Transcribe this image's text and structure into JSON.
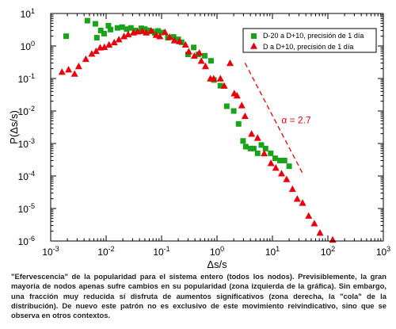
{
  "chart_data": {
    "type": "scatter",
    "xlabel": "Δs/s",
    "ylabel": "P(Δs/s)",
    "xscale": "log",
    "yscale": "log",
    "xlim": [
      0.001,
      1000
    ],
    "ylim": [
      1e-06,
      10
    ],
    "x_ticks": [
      "10",
      "10",
      "10",
      "10",
      "10",
      "10",
      "10"
    ],
    "x_tick_exponents": [
      "-3",
      "-2",
      "-1",
      "0",
      "1",
      "2",
      "3"
    ],
    "y_ticks": [
      "10",
      "10",
      "10",
      "10",
      "10",
      "10",
      "10",
      "10"
    ],
    "y_tick_exponents": [
      "-6",
      "-5",
      "-4",
      "-3",
      "-2",
      "-1",
      "0",
      "1"
    ],
    "legend_position": "top-right",
    "series": [
      {
        "name": "D-20 a D+10, precisión de 1 día",
        "color": "#1aa31a",
        "marker": "square",
        "points": [
          [
            0.0019,
            2.0
          ],
          [
            0.0046,
            6.0
          ],
          [
            0.0064,
            4.8
          ],
          [
            0.0068,
            1.8
          ],
          [
            0.008,
            3.0
          ],
          [
            0.0092,
            2.4
          ],
          [
            0.011,
            4.2
          ],
          [
            0.012,
            3.2
          ],
          [
            0.016,
            3.6
          ],
          [
            0.0195,
            3.8
          ],
          [
            0.0235,
            3.3
          ],
          [
            0.028,
            3.6
          ],
          [
            0.033,
            3.0
          ],
          [
            0.038,
            2.8
          ],
          [
            0.043,
            3.5
          ],
          [
            0.05,
            3.3
          ],
          [
            0.058,
            3.0
          ],
          [
            0.067,
            2.8
          ],
          [
            0.076,
            2.5
          ],
          [
            0.086,
            2.9
          ],
          [
            0.1,
            2.6
          ],
          [
            0.13,
            1.8
          ],
          [
            0.165,
            1.9
          ],
          [
            0.2,
            1.6
          ],
          [
            0.23,
            1.3
          ],
          [
            0.3,
            0.55
          ],
          [
            0.38,
            0.9
          ],
          [
            0.46,
            0.55
          ],
          [
            0.6,
            0.5
          ],
          [
            0.78,
            0.35
          ],
          [
            0.88,
            0.09
          ],
          [
            1.15,
            0.06
          ],
          [
            1.5,
            0.014
          ],
          [
            2.0,
            0.01
          ],
          [
            2.45,
            0.004
          ],
          [
            2.95,
            0.0012
          ],
          [
            3.3,
            0.0008
          ],
          [
            4.0,
            0.0007
          ],
          [
            4.6,
            0.0007
          ],
          [
            5.4,
            0.0005
          ],
          [
            6.3,
            0.0009
          ],
          [
            7.5,
            0.0007
          ],
          [
            9.3,
            0.0005
          ],
          [
            11.2,
            0.00035
          ],
          [
            13.7,
            0.0003
          ],
          [
            16.5,
            0.0003
          ],
          [
            20.0,
            0.0002
          ]
        ]
      },
      {
        "name": "D a D+10, precisión de 1 día",
        "color": "#e8000b",
        "marker": "triangle",
        "points": [
          [
            0.0016,
            0.16
          ],
          [
            0.0021,
            0.19
          ],
          [
            0.0027,
            0.14
          ],
          [
            0.0032,
            0.24
          ],
          [
            0.0043,
            0.4
          ],
          [
            0.0055,
            0.58
          ],
          [
            0.0066,
            0.7
          ],
          [
            0.0078,
            0.9
          ],
          [
            0.0093,
            0.93
          ],
          [
            0.0113,
            1.1
          ],
          [
            0.014,
            1.3
          ],
          [
            0.017,
            1.6
          ],
          [
            0.021,
            2.0
          ],
          [
            0.025,
            2.3
          ],
          [
            0.031,
            2.6
          ],
          [
            0.037,
            2.8
          ],
          [
            0.045,
            2.9
          ],
          [
            0.053,
            2.6
          ],
          [
            0.065,
            3.0
          ],
          [
            0.08,
            2.2
          ],
          [
            0.093,
            2.0
          ],
          [
            0.115,
            2.7
          ],
          [
            0.14,
            1.9
          ],
          [
            0.17,
            1.5
          ],
          [
            0.21,
            1.4
          ],
          [
            0.27,
            1.1
          ],
          [
            0.31,
            0.68
          ],
          [
            0.39,
            0.5
          ],
          [
            0.48,
            0.62
          ],
          [
            0.52,
            0.35
          ],
          [
            0.62,
            0.24
          ],
          [
            0.76,
            0.1
          ],
          [
            0.87,
            0.1
          ],
          [
            1.15,
            0.1
          ],
          [
            1.35,
            0.06
          ],
          [
            1.72,
            0.3
          ],
          [
            2.05,
            0.035
          ],
          [
            2.3,
            0.03
          ],
          [
            2.8,
            0.015
          ],
          [
            3.2,
            0.007
          ],
          [
            4.2,
            0.002
          ],
          [
            5.4,
            0.0015
          ],
          [
            7.1,
            0.0005
          ],
          [
            9.4,
            0.00025
          ],
          [
            11.5,
            0.00018
          ],
          [
            14.6,
            0.00012
          ],
          [
            18.0,
            8e-05
          ],
          [
            23.0,
            4e-05
          ],
          [
            28.0,
            2e-05
          ],
          [
            35.0,
            1.5e-05
          ],
          [
            45.0,
            6e-06
          ],
          [
            57.0,
            3.5e-06
          ],
          [
            72.0,
            1.8e-06
          ],
          [
            122.0,
            1.1e-06
          ]
        ]
      }
    ],
    "fit_line": {
      "label": "α = 2.7",
      "color": "#e8000b",
      "from": [
        3.2,
        0.3
      ],
      "to": [
        35.0,
        0.00012
      ]
    }
  },
  "caption": "\"Efervescencia\" de la popularidad para el sistema entero (todos los nodos). Previsiblemente, la gran mayoría de nodos apenas sufre cambios en su popularidad (zona izquierda de la gráfica). Sin embargo, una fracción muy reducida sí disfruta de aumentos significativos (zona derecha, la \"cola\" de la distribución). De nuevo este patrón no es exclusivo de este movimiento reivindicativo, sino que se observa en otros contextos."
}
